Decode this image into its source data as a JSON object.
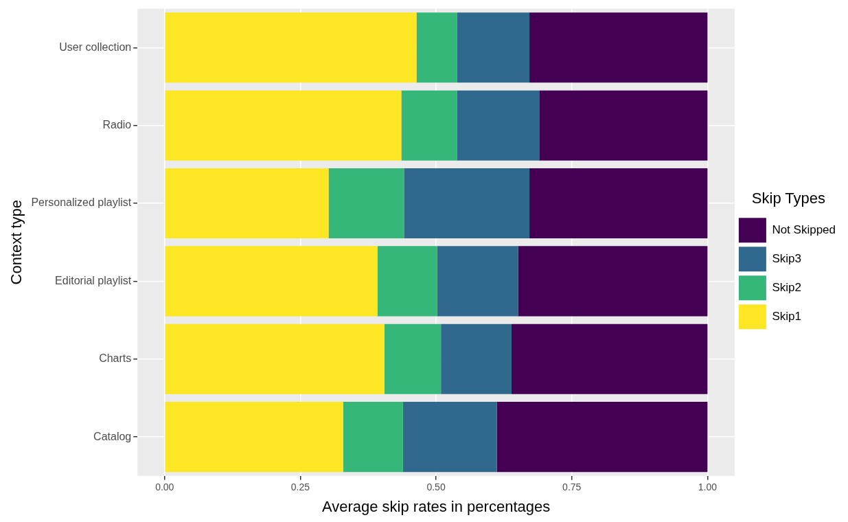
{
  "chart_data": {
    "type": "bar",
    "orientation": "horizontal",
    "stacked": true,
    "xlabel": "Average skip rates in percentages",
    "ylabel": "Context type",
    "legend_title": "Skip Types",
    "categories": [
      "User collection",
      "Radio",
      "Personalized playlist",
      "Editorial playlist",
      "Charts",
      "Catalog"
    ],
    "series": [
      {
        "name": "Skip1",
        "color": "#fde725",
        "values": [
          0.464,
          0.436,
          0.302,
          0.392,
          0.405,
          0.329
        ]
      },
      {
        "name": "Skip2",
        "color": "#35b779",
        "values": [
          0.075,
          0.103,
          0.139,
          0.11,
          0.104,
          0.11
        ]
      },
      {
        "name": "Skip3",
        "color": "#31688e",
        "values": [
          0.133,
          0.151,
          0.231,
          0.149,
          0.13,
          0.173
        ]
      },
      {
        "name": "Not Skipped",
        "color": "#440154",
        "values": [
          0.328,
          0.31,
          0.328,
          0.349,
          0.361,
          0.388
        ]
      }
    ],
    "xlim": [
      -0.05,
      1.05
    ],
    "xticks": [
      {
        "value": 0,
        "label": "0.00"
      },
      {
        "value": 0.25,
        "label": "0.25"
      },
      {
        "value": 0.5,
        "label": "0.50"
      },
      {
        "value": 0.75,
        "label": "0.75"
      },
      {
        "value": 1,
        "label": "1.00"
      }
    ],
    "grid": true,
    "legend": "right"
  }
}
